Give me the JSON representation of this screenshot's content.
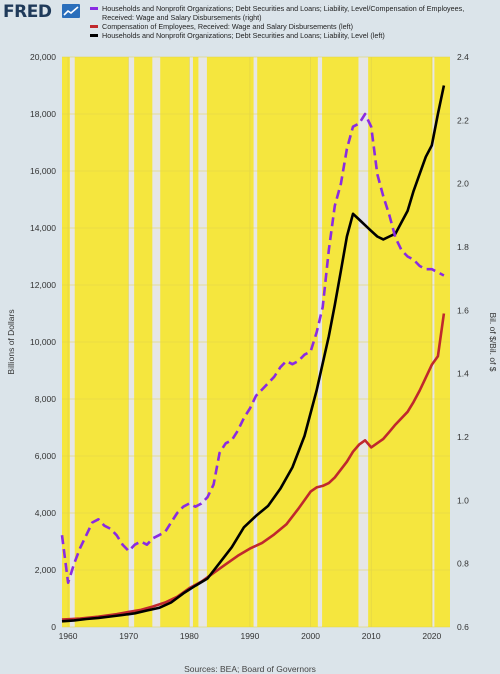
{
  "brand": {
    "logo_text": "FRED",
    "logo_icon": "chart-line-icon"
  },
  "colors": {
    "background": "#dbe4ea",
    "plot_fill": "#f5e63e",
    "recession": "#e6e6e6",
    "ratio_series": "#8a2be2",
    "compensation_series": "#c0282d",
    "debt_series": "#000000"
  },
  "chart_data": {
    "type": "line",
    "xlim": [
      1959,
      2023
    ],
    "x_ticks": [
      1960,
      1970,
      1980,
      1990,
      2000,
      2010,
      2020
    ],
    "y_left": {
      "label": "Billions of Dollars",
      "range": [
        0,
        20000
      ],
      "ticks": [
        0,
        2000,
        4000,
        6000,
        8000,
        10000,
        12000,
        14000,
        16000,
        18000,
        20000
      ]
    },
    "y_right": {
      "label": "Bil. of $/Bil. of $",
      "range": [
        0.6,
        2.4
      ],
      "ticks": [
        0.6,
        0.8,
        1.0,
        1.2,
        1.4,
        1.6,
        1.8,
        2.0,
        2.2,
        2.4
      ]
    },
    "recessions": [
      [
        1960.3,
        1961.1
      ],
      [
        1969.9,
        1970.9
      ],
      [
        1973.9,
        1975.2
      ],
      [
        1980.0,
        1980.6
      ],
      [
        1981.5,
        1982.9
      ],
      [
        1990.6,
        1991.2
      ],
      [
        2001.2,
        2001.9
      ],
      [
        2007.9,
        2009.5
      ],
      [
        2020.1,
        2020.4
      ]
    ],
    "series": [
      {
        "name": "Households and Nonprofit Organizations; Debt Securities and Loans; Liability, Level/Compensation of Employees, Received: Wage and Salary Disbursements (right)",
        "axis": "right",
        "style": "dashed",
        "x": [
          1959,
          1960,
          1961,
          1962,
          1963,
          1964,
          1965,
          1966,
          1967,
          1968,
          1969,
          1970,
          1971,
          1972,
          1973,
          1974,
          1975,
          1976,
          1977,
          1978,
          1979,
          1980,
          1981,
          1982,
          1983,
          1984,
          1985,
          1986,
          1987,
          1988,
          1989,
          1990,
          1991,
          1992,
          1993,
          1994,
          1995,
          1996,
          1997,
          1998,
          1999,
          2000,
          2001,
          2002,
          2003,
          2004,
          2005,
          2006,
          2007,
          2008,
          2009,
          2010,
          2011,
          2012,
          2013,
          2014,
          2015,
          2016,
          2017,
          2018,
          2019,
          2020,
          2021,
          2022
        ],
        "values": [
          0.89,
          0.74,
          0.8,
          0.85,
          0.89,
          0.93,
          0.94,
          0.92,
          0.91,
          0.89,
          0.86,
          0.84,
          0.86,
          0.87,
          0.86,
          0.88,
          0.89,
          0.9,
          0.93,
          0.96,
          0.98,
          0.99,
          0.98,
          0.99,
          1.01,
          1.05,
          1.15,
          1.18,
          1.19,
          1.22,
          1.26,
          1.29,
          1.33,
          1.35,
          1.37,
          1.39,
          1.42,
          1.44,
          1.43,
          1.44,
          1.46,
          1.47,
          1.53,
          1.61,
          1.79,
          1.93,
          2.0,
          2.11,
          2.18,
          2.19,
          2.22,
          2.18,
          2.03,
          1.96,
          1.9,
          1.83,
          1.79,
          1.77,
          1.76,
          1.74,
          1.73,
          1.73,
          1.72,
          1.71
        ]
      },
      {
        "name": "Compensation of Employees, Received: Wage and Salary Disbursements (left)",
        "axis": "left",
        "style": "solid",
        "x": [
          1959,
          1962,
          1965,
          1968,
          1970,
          1972,
          1974,
          1976,
          1978,
          1980,
          1982,
          1984,
          1986,
          1988,
          1990,
          1992,
          1994,
          1996,
          1998,
          2000,
          2001,
          2002,
          2003,
          2004,
          2006,
          2007,
          2008,
          2009,
          2010,
          2012,
          2013,
          2014,
          2016,
          2017,
          2018,
          2019,
          2020,
          2021,
          2022
        ],
        "values": [
          260,
          300,
          360,
          450,
          530,
          600,
          720,
          860,
          1060,
          1360,
          1590,
          1900,
          2200,
          2500,
          2750,
          2950,
          3250,
          3600,
          4150,
          4750,
          4900,
          4950,
          5050,
          5250,
          5800,
          6150,
          6400,
          6550,
          6300,
          6600,
          6850,
          7100,
          7550,
          7900,
          8300,
          8750,
          9200,
          9500,
          11000
        ]
      },
      {
        "name": "Households and Nonprofit Organizations; Debt Securities and Loans; Liability, Level (left)",
        "axis": "left",
        "style": "solid",
        "x": [
          1959,
          1961,
          1963,
          1965,
          1967,
          1969,
          1971,
          1973,
          1975,
          1977,
          1979,
          1981,
          1983,
          1985,
          1987,
          1989,
          1991,
          1993,
          1995,
          1997,
          1999,
          2001,
          2003,
          2004,
          2005,
          2006,
          2007,
          2008,
          2009,
          2010,
          2011,
          2012,
          2013,
          2014,
          2015,
          2016,
          2017,
          2018,
          2019,
          2020,
          2021,
          2022
        ],
        "values": [
          200,
          230,
          280,
          320,
          370,
          420,
          480,
          580,
          670,
          860,
          1180,
          1450,
          1700,
          2250,
          2800,
          3500,
          3900,
          4250,
          4850,
          5600,
          6700,
          8300,
          10200,
          11300,
          12500,
          13700,
          14500,
          14300,
          14100,
          13900,
          13700,
          13600,
          13700,
          13800,
          14200,
          14600,
          15300,
          15900,
          16500,
          16900,
          18000,
          19000
        ]
      }
    ],
    "source": "Sources: BEA; Board of Governors"
  }
}
